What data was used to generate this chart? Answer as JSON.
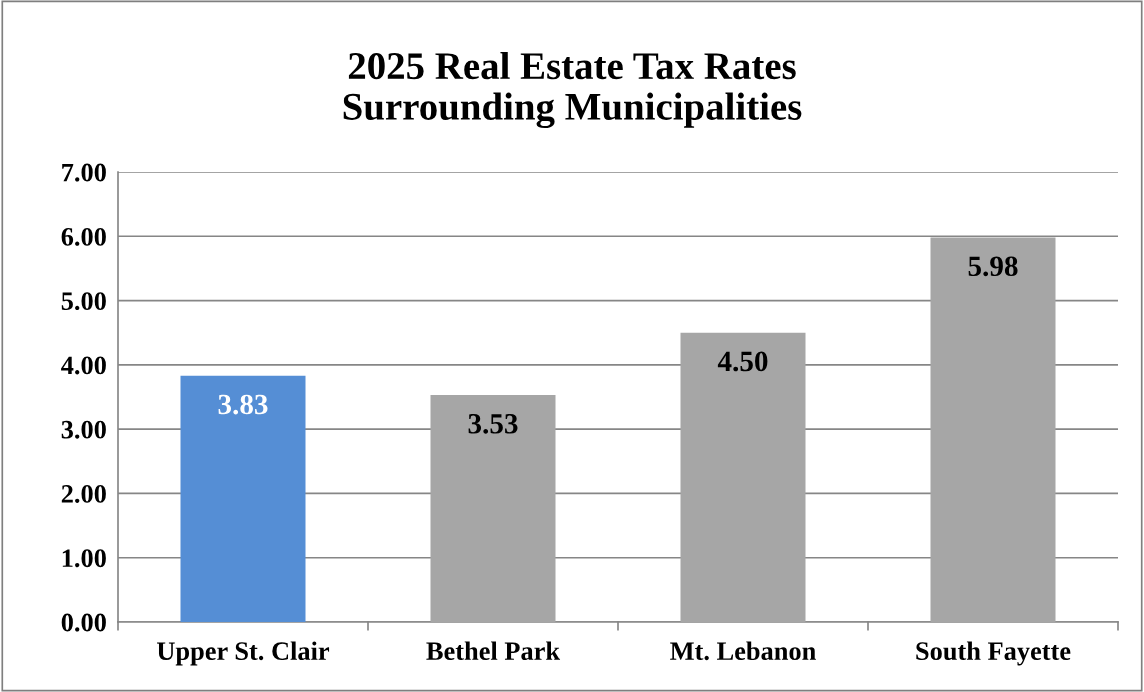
{
  "chart_data": {
    "type": "bar",
    "title": "2025 Real Estate Tax Rates\nSurrounding Municipalities",
    "categories": [
      "Upper St. Clair",
      "Bethel Park",
      "Mt. Lebanon",
      "South Fayette"
    ],
    "values": [
      3.83,
      3.53,
      4.5,
      5.98
    ],
    "colors": [
      "#558ed5",
      "#a6a6a6",
      "#a6a6a6",
      "#a6a6a6"
    ],
    "ylim": [
      0,
      7
    ],
    "yticks": [
      {
        "value": 0,
        "label": "0.00"
      },
      {
        "value": 1,
        "label": "1.00"
      },
      {
        "value": 2,
        "label": "2.00"
      },
      {
        "value": 3,
        "label": "3.00"
      },
      {
        "value": 4,
        "label": "4.00"
      },
      {
        "value": 5,
        "label": "5.00"
      },
      {
        "value": 6,
        "label": "6.00"
      },
      {
        "value": 7,
        "label": "7.00"
      }
    ],
    "value_labels": [
      "3.83",
      "3.53",
      "4.50",
      "5.98"
    ],
    "grid": "y",
    "legend": false
  }
}
